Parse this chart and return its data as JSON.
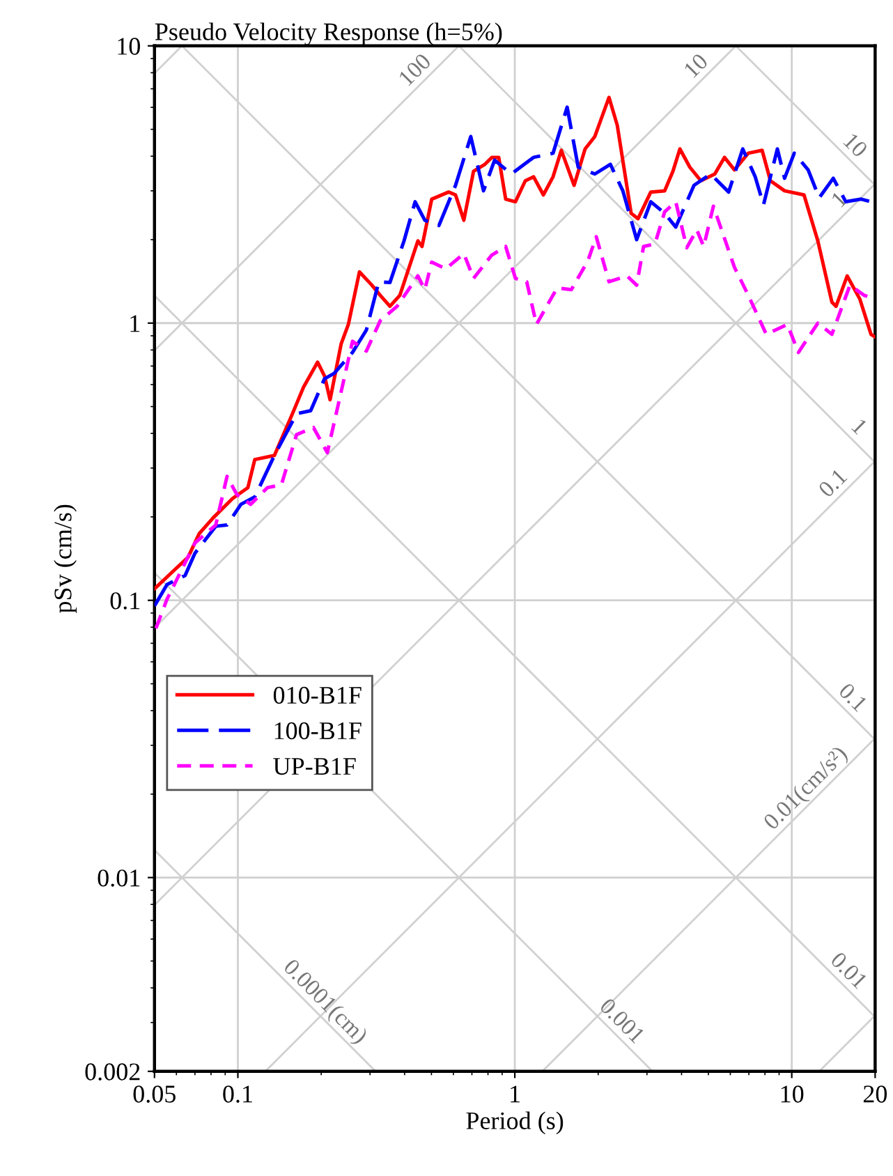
{
  "chart_data": {
    "type": "line",
    "title": "Pseudo Velocity Response (h=5%)",
    "xlabel": "Period (s)",
    "ylabel": "pSv (cm/s)",
    "log": "xy",
    "grid": true,
    "legend": "left",
    "xlim": [
      0.05,
      20
    ],
    "ylim": [
      0.002,
      10
    ],
    "xticks": [
      0.05,
      0.1,
      1,
      10,
      20
    ],
    "yticks": [
      0.002,
      0.01,
      0.1,
      1,
      10
    ],
    "series": [
      {
        "name": "010-B1F",
        "color": "#ff0000",
        "line_style": "solid",
        "x": [
          0.05,
          0.0587,
          0.0661,
          0.0725,
          0.0813,
          0.0957,
          0.1087,
          0.1151,
          0.1355,
          0.1403,
          0.1574,
          0.1726,
          0.1941,
          0.2056,
          0.2153,
          0.236,
          0.2506,
          0.2748,
          0.3048,
          0.3266,
          0.354,
          0.3846,
          0.4467,
          0.4624,
          0.5012,
          0.5768,
          0.6109,
          0.6546,
          0.7096,
          0.7798,
          0.826,
          0.875,
          0.9268,
          1.005,
          1.091,
          1.169,
          1.268,
          1.374,
          1.472,
          1.637,
          1.794,
          1.945,
          2.188,
          2.344,
          2.63,
          2.786,
          3.097,
          3.475,
          3.724,
          3.945,
          4.285,
          4.699,
          5.272,
          5.715,
          6.209,
          6.966,
          7.816,
          8.375,
          9.419,
          11.07,
          12.42,
          13.96,
          14.45,
          15.85,
          17.62,
          19.32,
          20.0
        ],
        "values": [
          0.11,
          0.128,
          0.143,
          0.174,
          0.198,
          0.233,
          0.255,
          0.322,
          0.333,
          0.361,
          0.471,
          0.587,
          0.723,
          0.644,
          0.529,
          0.841,
          0.989,
          1.53,
          1.37,
          1.26,
          1.15,
          1.26,
          1.98,
          1.89,
          2.8,
          2.97,
          2.9,
          2.35,
          3.53,
          3.74,
          3.96,
          3.96,
          2.8,
          2.74,
          3.26,
          3.37,
          2.9,
          3.37,
          4.2,
          3.14,
          4.25,
          4.71,
          6.52,
          5.17,
          2.49,
          2.38,
          2.97,
          3.0,
          3.53,
          4.25,
          3.65,
          3.26,
          3.45,
          3.96,
          3.57,
          4.1,
          4.2,
          3.26,
          3.0,
          2.9,
          1.98,
          1.19,
          1.15,
          1.48,
          1.22,
          0.911,
          0.891
        ]
      },
      {
        "name": "100-B1F",
        "color": "#0000ff",
        "line_style": "dashed",
        "x": [
          0.05,
          0.0555,
          0.0645,
          0.07,
          0.0832,
          0.0914,
          0.1026,
          0.1151,
          0.1355,
          0.1629,
          0.1832,
          0.2056,
          0.2228,
          0.2594,
          0.2911,
          0.3228,
          0.354,
          0.3981,
          0.4365,
          0.4732,
          0.5321,
          0.6109,
          0.6934,
          0.7709,
          0.8453,
          0.9705,
          1.169,
          1.374,
          1.545,
          1.694,
          1.945,
          2.213,
          2.455,
          2.754,
          3.097,
          3.475,
          3.811,
          4.436,
          5.093,
          5.916,
          6.653,
          7.379,
          7.907,
          8.872,
          9.419,
          10.21,
          11.46,
          12.56,
          14.12,
          15.67,
          17.82,
          19.32,
          20.0
        ],
        "values": [
          0.0955,
          0.114,
          0.123,
          0.148,
          0.185,
          0.187,
          0.222,
          0.236,
          0.333,
          0.471,
          0.483,
          0.63,
          0.659,
          0.784,
          0.944,
          1.41,
          1.4,
          1.98,
          2.74,
          2.35,
          2.25,
          3.14,
          4.71,
          3.0,
          3.87,
          3.45,
          3.96,
          4.1,
          6.01,
          3.65,
          3.45,
          3.74,
          3.0,
          2.0,
          2.74,
          2.49,
          2.22,
          3.14,
          3.45,
          2.97,
          4.25,
          3.37,
          2.67,
          4.25,
          3.33,
          4.1,
          3.57,
          2.83,
          3.33,
          2.74,
          2.8,
          2.74,
          2.67
        ]
      },
      {
        "name": "UP-B1F",
        "color": "#ff00ff",
        "line_style": "dotted",
        "x": [
          0.0506,
          0.0555,
          0.07,
          0.0832,
          0.0914,
          0.0991,
          0.1112,
          0.1279,
          0.1436,
          0.1629,
          0.1875,
          0.2104,
          0.2307,
          0.2594,
          0.2911,
          0.3266,
          0.3758,
          0.4467,
          0.4732,
          0.5012,
          0.5636,
          0.6546,
          0.7096,
          0.826,
          0.9268,
          1.005,
          1.104,
          1.197,
          1.422,
          1.6,
          1.837,
          1.968,
          2.188,
          2.541,
          2.754,
          2.917,
          3.206,
          3.475,
          3.811,
          4.178,
          4.539,
          4.808,
          5.212,
          6.209,
          6.966,
          8.091,
          9.638,
          10.57,
          12.42,
          13.96,
          16.22,
          18.24,
          20.0
        ],
        "values": [
          0.0793,
          0.101,
          0.161,
          0.187,
          0.28,
          0.241,
          0.222,
          0.255,
          0.261,
          0.396,
          0.42,
          0.341,
          0.511,
          0.86,
          0.793,
          1.02,
          1.15,
          1.48,
          1.32,
          1.66,
          1.57,
          1.78,
          1.45,
          1.76,
          1.89,
          1.45,
          1.41,
          0.989,
          1.34,
          1.32,
          1.68,
          2.05,
          1.41,
          1.48,
          1.37,
          1.89,
          1.93,
          2.52,
          2.74,
          1.87,
          2.17,
          1.89,
          2.64,
          1.59,
          1.26,
          0.911,
          0.989,
          0.784,
          1.0,
          0.911,
          1.37,
          1.26,
          1.22
        ]
      },
      {
        "color": "#d0d0d0",
        "x": [
          0.05,
          0.06283
        ],
        "values": [
          7.958,
          10
        ]
      },
      {
        "name": "100",
        "color": "#d0d0d0",
        "x": [
          0.05,
          0.6283
        ],
        "values": [
          0.7958,
          10
        ]
      },
      {
        "name": "10",
        "color": "#d0d0d0",
        "x": [
          0.05,
          6.283
        ],
        "values": [
          0.07958,
          10
        ]
      },
      {
        "name": "1",
        "color": "#d0d0d0",
        "x": [
          0.05,
          20
        ],
        "values": [
          0.007958,
          3.183
        ]
      },
      {
        "name": "0.1",
        "color": "#d0d0d0",
        "x": [
          0.1257,
          20
        ],
        "values": [
          0.002,
          0.3183
        ]
      },
      {
        "name": "0.01(cm/s²)",
        "color": "#d0d0d0",
        "x": [
          1.257,
          20
        ],
        "values": [
          0.002,
          0.03183
        ]
      },
      {
        "color": "#d0d0d0",
        "x": [
          12.57,
          20
        ],
        "values": [
          0.002,
          0.003183
        ]
      },
      {
        "name": "10",
        "color": "#d0d0d0",
        "x": [
          6.283,
          20
        ],
        "values": [
          10,
          3.142
        ]
      },
      {
        "name": "1",
        "color": "#d0d0d0",
        "x": [
          0.6283,
          20
        ],
        "values": [
          10,
          0.3142
        ]
      },
      {
        "name": "0.1",
        "color": "#d0d0d0",
        "x": [
          0.06283,
          20
        ],
        "values": [
          10,
          0.03142
        ]
      },
      {
        "name": "0.01",
        "color": "#d0d0d0",
        "x": [
          0.05,
          20
        ],
        "values": [
          1.257,
          0.003142
        ]
      },
      {
        "name": "0.001",
        "color": "#d0d0d0",
        "x": [
          0.05,
          3.142
        ],
        "values": [
          0.1257,
          0.002
        ]
      },
      {
        "name": "0.0001(cm)",
        "color": "#d0d0d0",
        "x": [
          0.05,
          0.3142
        ],
        "values": [
          0.01257,
          0.002
        ]
      }
    ]
  }
}
